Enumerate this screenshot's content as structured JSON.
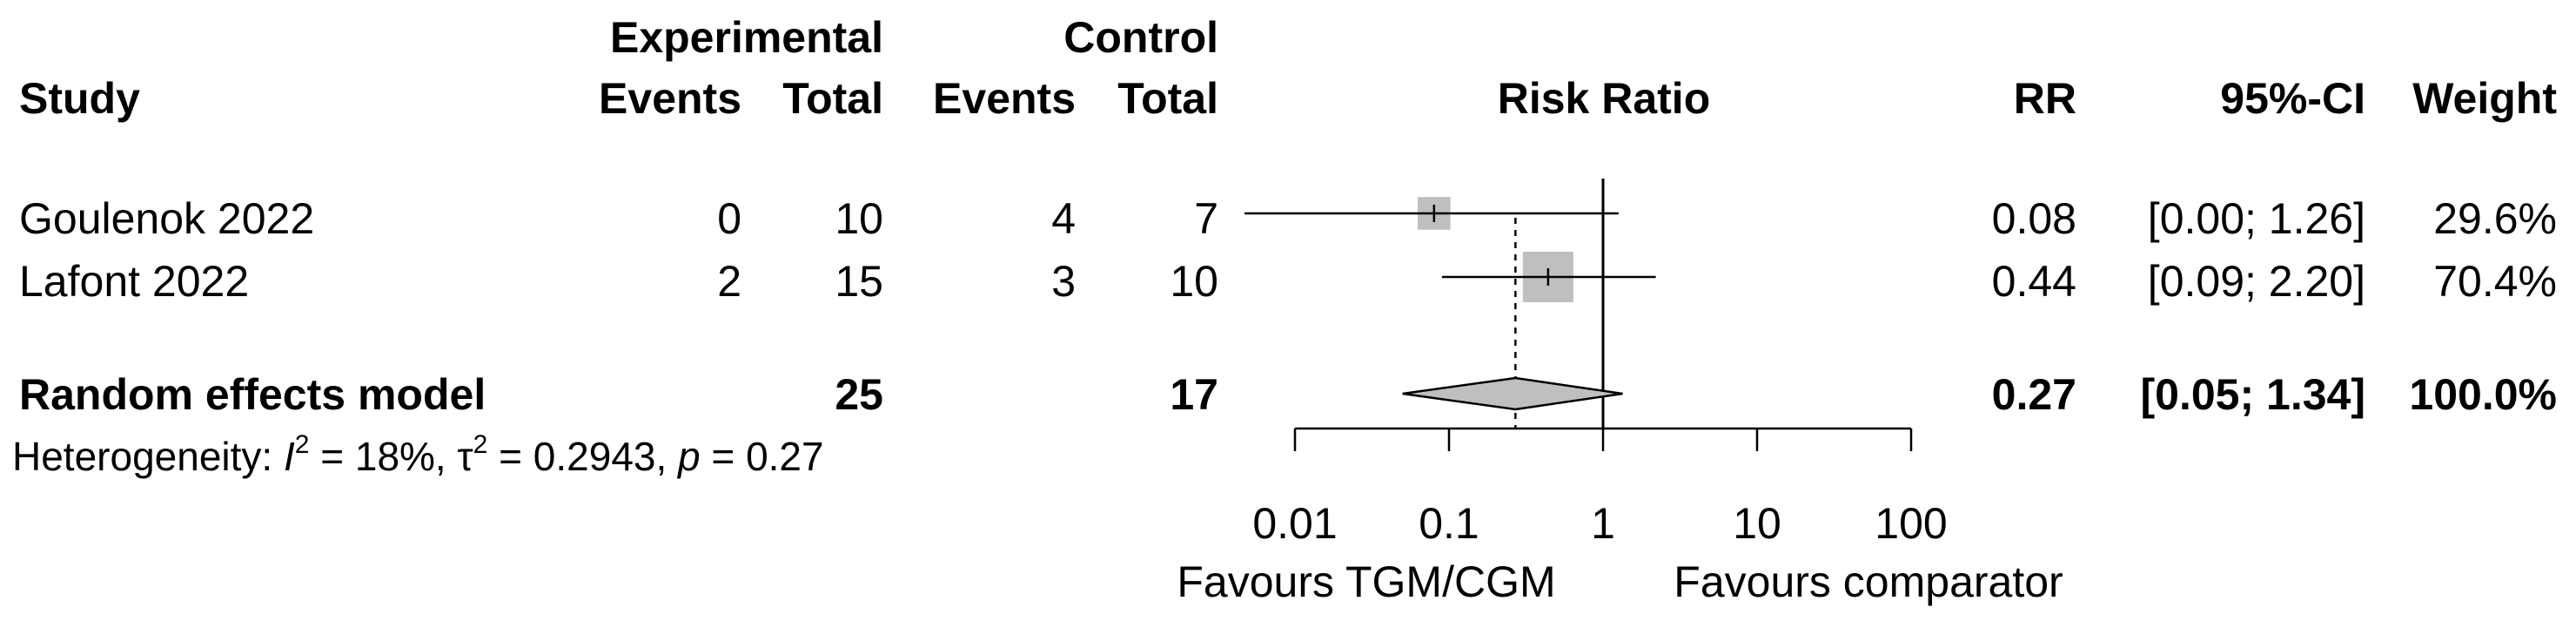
{
  "headers": {
    "experimental": "Experimental",
    "control": "Control",
    "study": "Study",
    "events": "Events",
    "total": "Total",
    "risk_ratio": "Risk Ratio",
    "rr": "RR",
    "ci": "95%-CI",
    "weight": "Weight"
  },
  "studies": [
    {
      "name": "Goulenok 2022",
      "exp_events": "0",
      "exp_total": "10",
      "ctrl_events": "4",
      "ctrl_total": "7",
      "rr": "0.08",
      "ci": "[0.00; 1.26]",
      "weight": "29.6%"
    },
    {
      "name": "Lafont 2022",
      "exp_events": "2",
      "exp_total": "15",
      "ctrl_events": "3",
      "ctrl_total": "10",
      "rr": "0.44",
      "ci": "[0.09; 2.20]",
      "weight": "70.4%"
    }
  ],
  "pooled": {
    "label": "Random effects model",
    "exp_total": "25",
    "ctrl_total": "17",
    "rr": "0.27",
    "ci": "[0.05; 1.34]",
    "weight": "100.0%"
  },
  "heterogeneity": {
    "prefix": "Heterogeneity: ",
    "i_symbol": "I",
    "sup_i": "2",
    "i_value": " = 18%, ",
    "tau_symbol": "τ",
    "sup_tau": "2",
    "tau_value": " = 0.2943, ",
    "p_symbol": "p",
    "p_value": " = 0.27"
  },
  "axis": {
    "favours_left": "Favours TGM/CGM",
    "favours_right": "Favours comparator"
  },
  "chart_data": {
    "type": "forest",
    "title": "Risk Ratio",
    "scale": "log",
    "xlim": [
      0.01,
      100
    ],
    "ticks": [
      0.01,
      0.1,
      1,
      10,
      100
    ],
    "tick_labels": [
      "0.01",
      "0.1",
      "1",
      "10",
      "100"
    ],
    "null_value": 1,
    "pooled_reference": 0.27,
    "studies": [
      {
        "name": "Goulenok 2022",
        "rr": 0.08,
        "ci_low": 0.0009,
        "ci_high": 1.26,
        "weight": 29.6,
        "ci_low_truncated": true
      },
      {
        "name": "Lafont 2022",
        "rr": 0.44,
        "ci_low": 0.09,
        "ci_high": 2.2,
        "weight": 70.4
      }
    ],
    "pooled": {
      "name": "Random effects model",
      "rr": 0.27,
      "ci_low": 0.05,
      "ci_high": 1.34
    },
    "xlabel_left": "Favours TGM/CGM",
    "xlabel_right": "Favours comparator"
  }
}
